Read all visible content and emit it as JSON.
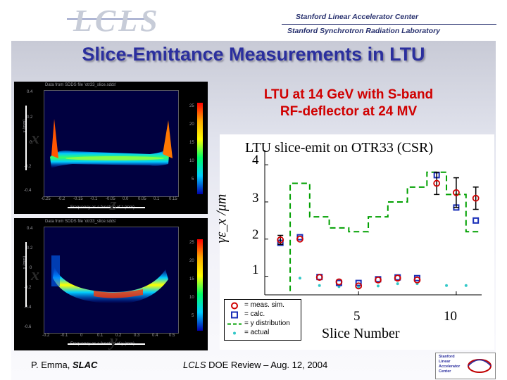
{
  "header": {
    "logo_text": "LCLS",
    "lab_line_1": "Stanford Linear Accelerator Center",
    "lab_line_2": "Stanford Synchrotron Radiation Laboratory"
  },
  "title": "Slice-Emittance Measurements in LTU",
  "subtitle_line_1": "LTU at 14 GeV with S-band",
  "subtitle_line_2": "RF-deflector at 24 MV",
  "left_panels": {
    "top": {
      "caption": "Data from SDDS file 'otr33_slice.sdds'",
      "yticks": [
        "0.4",
        "0.2",
        "0",
        "-0.2",
        "-0.4"
      ],
      "xticks": [
        "-0.25",
        "-0.2",
        "-0.15",
        "-0.1",
        "-0.05",
        "0.0",
        "0.05",
        "0.1",
        "0.15"
      ],
      "xlabel": "Frequency as a function of z (mm)",
      "ylabel": "x (mm)",
      "vertical_symbol": "x",
      "horizontal_symbol": "z",
      "cbar_ticks": [
        "25",
        "20",
        "15",
        "10",
        "5"
      ]
    },
    "bottom": {
      "caption": "Data from SDDS file 'otr33_slice.sdds'",
      "yticks": [
        "0.4",
        "0.2",
        "0",
        "-0.2",
        "-0.4",
        "-0.6"
      ],
      "xticks": [
        "-0.2",
        "-0.1",
        "0",
        "0.1",
        "0.2",
        "0.3",
        "0.4",
        "0.5"
      ],
      "xlabel": "Frequency as a function of y (mm)",
      "ylabel": "x (mm)",
      "vertical_symbol": "x",
      "horizontal_symbol": "y",
      "cbar_ticks": [
        "25",
        "20",
        "15",
        "10",
        "5"
      ]
    }
  },
  "chart_data": {
    "type": "scatter",
    "title": "LTU slice-emit on OTR33 (CSR)",
    "xlabel": "Slice Number",
    "ylabel": "γε_x /μm",
    "xlim": [
      0.2,
      11.3
    ],
    "ylim": [
      0.5,
      4.4
    ],
    "xticks": [
      "5",
      "10"
    ],
    "yticks": [
      "1",
      "2",
      "3",
      "4"
    ],
    "grid": false,
    "legend_position": "bottom-left",
    "colors": {
      "meas": "#d00000",
      "calc": "#1a2fb8",
      "dist": "#00a000",
      "actual": "#33c8c8"
    },
    "series": [
      {
        "name": "= meas. sim.",
        "marker": "circle",
        "x": [
          1,
          2,
          3,
          4,
          5,
          6,
          7,
          8,
          9,
          10,
          11
        ],
        "y": [
          1.98,
          2.0,
          0.97,
          0.85,
          0.74,
          0.9,
          0.95,
          0.9,
          3.5,
          3.25,
          3.1
        ],
        "err": [
          0.12,
          0,
          0,
          0,
          0,
          0,
          0,
          0,
          0.3,
          0.4,
          0.3
        ]
      },
      {
        "name": "= calc.",
        "marker": "square",
        "x": [
          1,
          2,
          3,
          4,
          5,
          6,
          7,
          8,
          9,
          10,
          11
        ],
        "y": [
          1.9,
          2.05,
          0.98,
          0.82,
          0.82,
          0.92,
          0.97,
          0.95,
          3.72,
          2.85,
          2.5
        ],
        "err": []
      },
      {
        "name": "= y distribution",
        "marker": "dashed-step",
        "x": [
          1.5,
          2.5,
          3.5,
          4.5,
          5.5,
          6.5,
          7.5,
          8.5,
          9.5,
          10.5,
          11.3
        ],
        "y": [
          3.5,
          2.6,
          2.3,
          2.2,
          2.6,
          3.0,
          3.4,
          3.8,
          3.2,
          2.2,
          1.5
        ],
        "err": []
      },
      {
        "name": "= actual",
        "marker": "dot",
        "x": [
          2.0,
          3.0,
          4.0,
          5.0,
          6.0,
          7.0,
          8.0,
          9.5,
          10.5
        ],
        "y": [
          0.95,
          0.75,
          0.72,
          0.72,
          0.74,
          0.8,
          0.8,
          0.75,
          0.75
        ],
        "err": []
      }
    ]
  },
  "footer": {
    "left_name": "P. Emma, ",
    "left_org": "SLAC",
    "center_org": "LCLS",
    "center_rest": " DOE Review – Aug. 12, 2004",
    "mark_lines": [
      "Stanford",
      "Linear",
      "Accelerator",
      "Center"
    ]
  }
}
